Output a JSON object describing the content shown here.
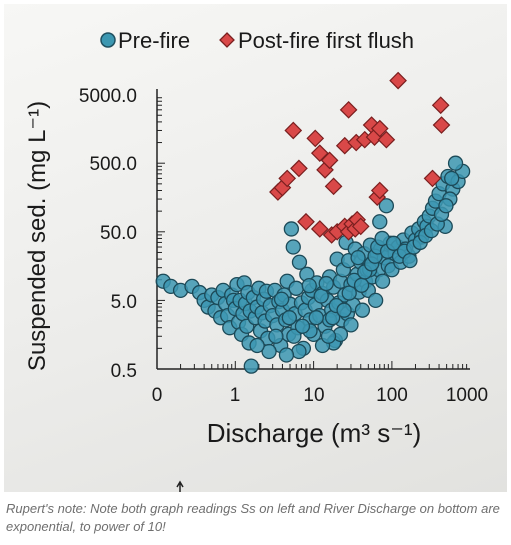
{
  "chart_data": {
    "type": "scatter",
    "x_scale": "log",
    "y_scale": "log",
    "xlabel": "Discharge (m³ s⁻¹)",
    "ylabel": "Suspended sed. (mg L⁻¹)",
    "xlim": [
      0.1,
      1000
    ],
    "ylim": [
      0.5,
      8000
    ],
    "x_ticks": [
      0.1,
      1,
      10,
      100,
      1000
    ],
    "x_tick_labels": [
      "0",
      "1",
      "10",
      "100",
      "1000"
    ],
    "y_ticks": [
      0.5,
      5,
      50,
      500,
      5000
    ],
    "y_tick_labels": [
      "0.5",
      "5.0",
      "50.0",
      "500.0",
      "5000.0"
    ],
    "legend_position": "top",
    "series": [
      {
        "name": "Pre-fire",
        "marker": "circle",
        "color": "#3c97b1",
        "points": [
          [
            0.12,
            9.5
          ],
          [
            0.15,
            8
          ],
          [
            0.2,
            7
          ],
          [
            0.28,
            8
          ],
          [
            0.35,
            6.5
          ],
          [
            0.4,
            5
          ],
          [
            0.45,
            4
          ],
          [
            0.5,
            6
          ],
          [
            0.55,
            3.5
          ],
          [
            0.6,
            5.5
          ],
          [
            0.65,
            2.8
          ],
          [
            0.7,
            7
          ],
          [
            0.75,
            4.5
          ],
          [
            0.8,
            3
          ],
          [
            0.85,
            2
          ],
          [
            0.9,
            6
          ],
          [
            0.95,
            5
          ],
          [
            1.0,
            3.8
          ],
          [
            1.05,
            8.5
          ],
          [
            1.1,
            2.4
          ],
          [
            1.15,
            5
          ],
          [
            1.2,
            1.6
          ],
          [
            1.25,
            3.2
          ],
          [
            1.3,
            9
          ],
          [
            1.35,
            4.5
          ],
          [
            1.4,
            2.1
          ],
          [
            1.45,
            6.5
          ],
          [
            1.5,
            1.2
          ],
          [
            1.55,
            3.5
          ],
          [
            1.6,
            0.55
          ],
          [
            1.7,
            5.5
          ],
          [
            1.8,
            2.8
          ],
          [
            1.9,
            4
          ],
          [
            2.0,
            7.5
          ],
          [
            2.1,
            1.8
          ],
          [
            2.2,
            3.3
          ],
          [
            2.3,
            5.2
          ],
          [
            2.4,
            2.5
          ],
          [
            2.5,
            6.8
          ],
          [
            2.6,
            1.4
          ],
          [
            2.8,
            4.2
          ],
          [
            3.0,
            3
          ],
          [
            3.2,
            7
          ],
          [
            3.4,
            2.2
          ],
          [
            3.6,
            4.8
          ],
          [
            3.8,
            1.1
          ],
          [
            4.0,
            3.6
          ],
          [
            4.2,
            6
          ],
          [
            4.4,
            2.6
          ],
          [
            4.6,
            9.5
          ],
          [
            4.8,
            1.6
          ],
          [
            5.0,
            4.4
          ],
          [
            5.2,
            55
          ],
          [
            5.5,
            30
          ],
          [
            5.8,
            3.2
          ],
          [
            6.0,
            7.5
          ],
          [
            6.3,
            2
          ],
          [
            6.6,
            18
          ],
          [
            7.0,
            4.6
          ],
          [
            7.4,
            1
          ],
          [
            7.8,
            3.6
          ],
          [
            8.2,
            12
          ],
          [
            8.6,
            5.5
          ],
          [
            9.0,
            2.6
          ],
          [
            9.5,
            7
          ],
          [
            10,
            1.6
          ],
          [
            10.5,
            4.3
          ],
          [
            11,
            9
          ],
          [
            12,
            3
          ],
          [
            13,
            6.3
          ],
          [
            14,
            2.1
          ],
          [
            15,
            5
          ],
          [
            16,
            11
          ],
          [
            17,
            3.6
          ],
          [
            18,
            7.8
          ],
          [
            19,
            1.3
          ],
          [
            20,
            20
          ],
          [
            21,
            4.6
          ],
          [
            22,
            9.5
          ],
          [
            23,
            2.6
          ],
          [
            24,
            14
          ],
          [
            25,
            6
          ],
          [
            26,
            35
          ],
          [
            27,
            3.2
          ],
          [
            28,
            19
          ],
          [
            30,
            8.5
          ],
          [
            32,
            4.3
          ],
          [
            34,
            28
          ],
          [
            36,
            12
          ],
          [
            38,
            6.6
          ],
          [
            40,
            18
          ],
          [
            42,
            3.6
          ],
          [
            44,
            24
          ],
          [
            46,
            9.5
          ],
          [
            48,
            14
          ],
          [
            50,
            7
          ],
          [
            53,
            32
          ],
          [
            56,
            11
          ],
          [
            59,
            19
          ],
          [
            62,
            5
          ],
          [
            65,
            24
          ],
          [
            68,
            14
          ],
          [
            72,
            28
          ],
          [
            76,
            9.5
          ],
          [
            80,
            21
          ],
          [
            85,
            120
          ],
          [
            90,
            16
          ],
          [
            95,
            34
          ],
          [
            100,
            14
          ],
          [
            110,
            24
          ],
          [
            120,
            30
          ],
          [
            130,
            18
          ],
          [
            140,
            38
          ],
          [
            150,
            28
          ],
          [
            165,
            22
          ],
          [
            180,
            48
          ],
          [
            200,
            38
          ],
          [
            220,
            55
          ],
          [
            240,
            42
          ],
          [
            260,
            70
          ],
          [
            280,
            60
          ],
          [
            300,
            85
          ],
          [
            330,
            110
          ],
          [
            360,
            140
          ],
          [
            400,
            180
          ],
          [
            450,
            250
          ],
          [
            520,
            320
          ],
          [
            600,
            210
          ],
          [
            700,
            270
          ],
          [
            800,
            380
          ],
          [
            550,
            150
          ],
          [
            480,
            60
          ],
          [
            70,
            70
          ],
          [
            52,
            14
          ],
          [
            30,
            2.2
          ],
          [
            18,
            1.2
          ],
          [
            9,
            1.8
          ],
          [
            6.5,
            0.9
          ],
          [
            4.5,
            0.8
          ],
          [
            13,
            1.1
          ],
          [
            22,
            1.6
          ],
          [
            16,
            2.6
          ],
          [
            2.7,
            0.9
          ],
          [
            1.9,
            1.1
          ],
          [
            3.3,
            1.5
          ],
          [
            3.9,
            5.2
          ],
          [
            4.9,
            2.8
          ],
          [
            5.6,
            1.5
          ],
          [
            7.2,
            2.1
          ],
          [
            8.8,
            8.2
          ],
          [
            10.8,
            2.8
          ],
          [
            12.5,
            5.8
          ],
          [
            14.5,
            8.8
          ],
          [
            15.5,
            1.5
          ],
          [
            17.5,
            2.8
          ],
          [
            19.5,
            4.2
          ],
          [
            24.5,
            3.6
          ],
          [
            28.5,
            6.4
          ],
          [
            33,
            9.8
          ],
          [
            37,
            21
          ],
          [
            41,
            8.3
          ],
          [
            45,
            13
          ],
          [
            55,
            17
          ],
          [
            61,
            22
          ],
          [
            66,
            30
          ],
          [
            75,
            40
          ],
          [
            88,
            26
          ],
          [
            105,
            34
          ],
          [
            125,
            22
          ],
          [
            145,
            26
          ],
          [
            170,
            19
          ],
          [
            190,
            30
          ],
          [
            230,
            35
          ],
          [
            270,
            44
          ],
          [
            320,
            52
          ],
          [
            380,
            65
          ],
          [
            430,
            90
          ],
          [
            490,
            120
          ],
          [
            580,
            300
          ],
          [
            650,
            500
          ]
        ]
      },
      {
        "name": "Post-fire first flush",
        "marker": "diamond",
        "color": "#d94848",
        "points": [
          [
            3.5,
            190
          ],
          [
            4.0,
            220
          ],
          [
            4.6,
            300
          ],
          [
            5.5,
            1500
          ],
          [
            6.5,
            420
          ],
          [
            10.5,
            1150
          ],
          [
            12,
            700
          ],
          [
            14,
            400
          ],
          [
            16,
            550
          ],
          [
            18,
            230
          ],
          [
            25,
            900
          ],
          [
            28,
            3000
          ],
          [
            35,
            1000
          ],
          [
            45,
            1100
          ],
          [
            55,
            1800
          ],
          [
            60,
            1200
          ],
          [
            65,
            160
          ],
          [
            70,
            200
          ],
          [
            70,
            1600
          ],
          [
            85,
            1100
          ],
          [
            120,
            8000
          ],
          [
            330,
            300
          ],
          [
            420,
            3500
          ],
          [
            430,
            1800
          ],
          [
            8,
            70
          ],
          [
            12,
            55
          ],
          [
            17,
            45
          ],
          [
            20,
            50
          ],
          [
            25,
            60
          ],
          [
            28,
            50
          ],
          [
            31,
            65
          ],
          [
            34,
            55
          ],
          [
            36,
            75
          ],
          [
            40,
            60
          ]
        ]
      }
    ]
  },
  "caption": "Rupert's note: Note both graph readings Ss on left and River Discharge on bottom are exponential, to power of 10!"
}
